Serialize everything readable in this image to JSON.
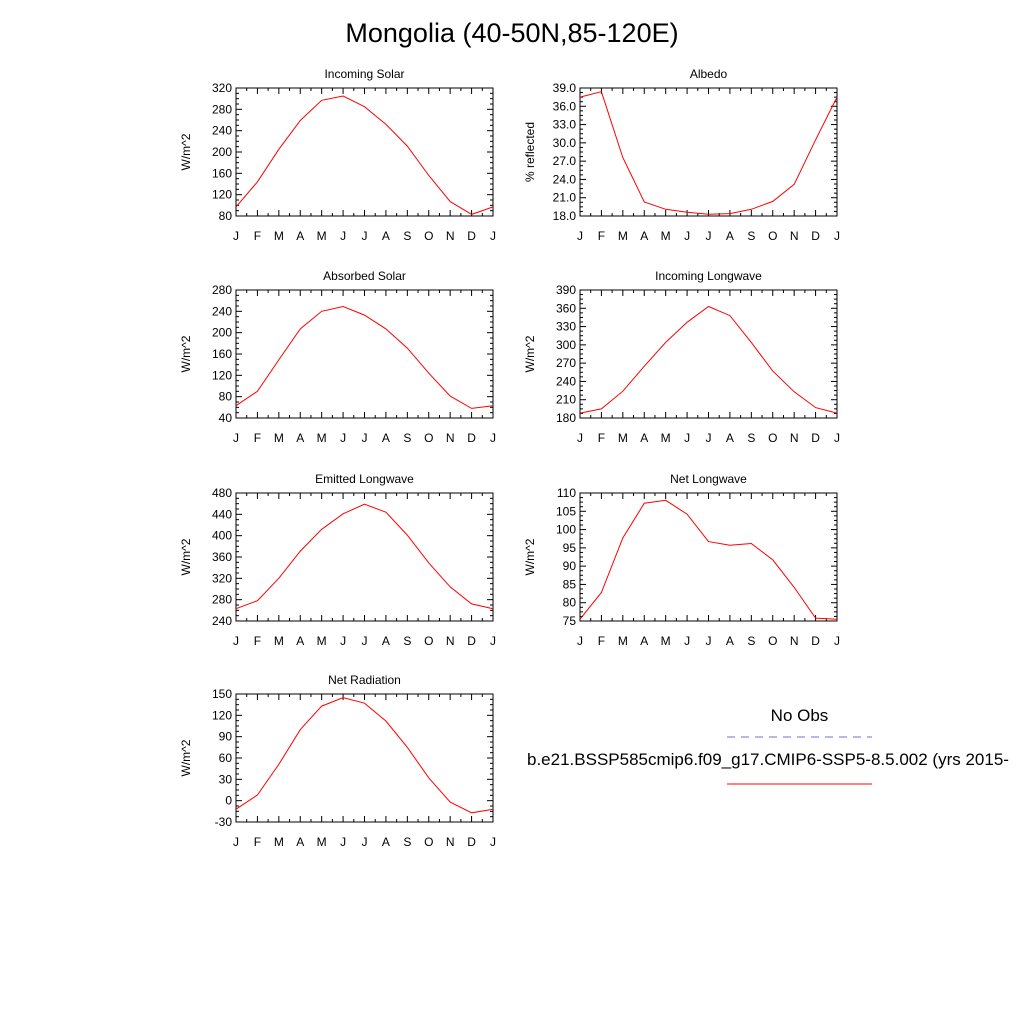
{
  "title": "Mongolia (40-50N,85-120E)",
  "legend": {
    "obs_label": "No Obs",
    "case_label": "b.e21.BSSP585cmip6.f09_g17.CMIP6-SSP5-8.5.002 (yrs 2015-",
    "obs_color": "#6f6fe0",
    "case_color": "#ff0000"
  },
  "chart_data": [
    {
      "type": "line",
      "title": "Incoming Solar",
      "ylabel": "W/m^2",
      "categories": [
        "J",
        "F",
        "M",
        "A",
        "M",
        "J",
        "J",
        "A",
        "S",
        "O",
        "N",
        "D",
        "J"
      ],
      "ylim": [
        80,
        320
      ],
      "yticks": [
        80,
        120,
        160,
        200,
        240,
        280,
        320
      ],
      "ytick_labels": [
        "80",
        "120",
        "160",
        "200",
        "240",
        "280",
        "320"
      ],
      "series": [
        {
          "values": [
            97,
            144,
            205,
            259,
            297,
            305,
            285,
            252,
            211,
            156,
            107,
            83,
            97
          ],
          "color": "#ff0000"
        }
      ]
    },
    {
      "type": "line",
      "title": "Albedo",
      "ylabel": "% reflected",
      "categories": [
        "J",
        "F",
        "M",
        "A",
        "M",
        "J",
        "J",
        "A",
        "S",
        "O",
        "N",
        "D",
        "J"
      ],
      "ylim": [
        18,
        39
      ],
      "yticks": [
        18,
        21,
        24,
        27,
        30,
        33,
        36,
        39
      ],
      "ytick_labels": [
        "18.0",
        "21.0",
        "24.0",
        "27.0",
        "30.0",
        "33.0",
        "36.0",
        "39.0"
      ],
      "series": [
        {
          "values": [
            37.5,
            38.4,
            27.6,
            20.3,
            19.1,
            18.6,
            18.3,
            18.4,
            19.1,
            20.4,
            23.2,
            30.5,
            37.5
          ],
          "color": "#ff0000"
        }
      ]
    },
    {
      "type": "line",
      "title": "Absorbed Solar",
      "ylabel": "W/m^2",
      "categories": [
        "J",
        "F",
        "M",
        "A",
        "M",
        "J",
        "J",
        "A",
        "S",
        "O",
        "N",
        "D",
        "J"
      ],
      "ylim": [
        40,
        280
      ],
      "yticks": [
        40,
        80,
        120,
        160,
        200,
        240,
        280
      ],
      "ytick_labels": [
        "40",
        "80",
        "120",
        "160",
        "200",
        "240",
        "280"
      ],
      "series": [
        {
          "values": [
            63,
            90,
            149,
            207,
            240,
            249,
            233,
            207,
            171,
            124,
            81,
            58,
            63
          ],
          "color": "#ff0000"
        }
      ]
    },
    {
      "type": "line",
      "title": "Incoming Longwave",
      "ylabel": "W/m^2",
      "categories": [
        "J",
        "F",
        "M",
        "A",
        "M",
        "J",
        "J",
        "A",
        "S",
        "O",
        "N",
        "D",
        "J"
      ],
      "ylim": [
        180,
        390
      ],
      "yticks": [
        180,
        210,
        240,
        270,
        300,
        330,
        360,
        390
      ],
      "ytick_labels": [
        "180",
        "210",
        "240",
        "270",
        "300",
        "330",
        "360",
        "390"
      ],
      "series": [
        {
          "values": [
            188,
            195,
            224,
            265,
            304,
            337,
            363,
            348,
            304,
            257,
            223,
            197,
            188
          ],
          "color": "#ff0000"
        }
      ]
    },
    {
      "type": "line",
      "title": "Emitted Longwave",
      "ylabel": "W/m^2",
      "categories": [
        "J",
        "F",
        "M",
        "A",
        "M",
        "J",
        "J",
        "A",
        "S",
        "O",
        "N",
        "D",
        "J"
      ],
      "ylim": [
        240,
        480
      ],
      "yticks": [
        240,
        280,
        320,
        360,
        400,
        440,
        480
      ],
      "ytick_labels": [
        "240",
        "280",
        "320",
        "360",
        "400",
        "440",
        "480"
      ],
      "series": [
        {
          "values": [
            263,
            278,
            320,
            371,
            412,
            441,
            459,
            444,
            401,
            349,
            304,
            272,
            263
          ],
          "color": "#ff0000"
        }
      ]
    },
    {
      "type": "line",
      "title": "Net Longwave",
      "ylabel": "W/m^2",
      "categories": [
        "J",
        "F",
        "M",
        "A",
        "M",
        "J",
        "J",
        "A",
        "S",
        "O",
        "N",
        "D",
        "J"
      ],
      "ylim": [
        75,
        110
      ],
      "yticks": [
        75,
        80,
        85,
        90,
        95,
        100,
        105,
        110
      ],
      "ytick_labels": [
        "75",
        "80",
        "85",
        "90",
        "95",
        "100",
        "105",
        "110"
      ],
      "series": [
        {
          "values": [
            75.5,
            82.8,
            97.7,
            107.2,
            108.0,
            104.2,
            96.7,
            95.7,
            96.2,
            91.7,
            84.2,
            75.8,
            75.5
          ],
          "color": "#ff0000"
        }
      ]
    },
    {
      "type": "line",
      "title": "Net Radiation",
      "ylabel": "W/m^2",
      "categories": [
        "J",
        "F",
        "M",
        "A",
        "M",
        "J",
        "J",
        "A",
        "S",
        "O",
        "N",
        "D",
        "J"
      ],
      "ylim": [
        -30,
        150
      ],
      "yticks": [
        -30,
        0,
        30,
        60,
        90,
        120,
        150
      ],
      "ytick_labels": [
        "-30",
        "0",
        "30",
        "60",
        "90",
        "120",
        "150"
      ],
      "series": [
        {
          "values": [
            -12,
            8,
            51,
            100,
            133,
            145,
            137,
            112,
            75,
            32,
            -2,
            -17,
            -12
          ],
          "color": "#ff0000"
        }
      ]
    }
  ]
}
